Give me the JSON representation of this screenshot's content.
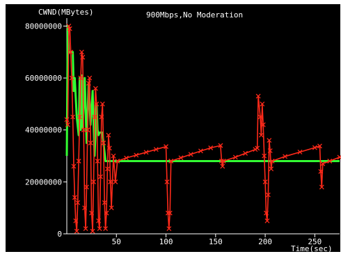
{
  "chart_data": {
    "type": "line",
    "title": "900Mbps,No Moderation",
    "ylabel": "CWND(MBytes)",
    "xlabel": "Time(sec)",
    "xlim": [
      0,
      275
    ],
    "ylim": [
      0,
      82000000
    ],
    "x_ticks": [
      50,
      100,
      150,
      200,
      250
    ],
    "y_ticks": [
      0,
      20000000,
      40000000,
      60000000,
      80000000
    ],
    "x_tick_labels": [
      "50",
      "100",
      "150",
      "200",
      "250"
    ],
    "y_tick_labels": [
      "0",
      "20000000",
      "40000000",
      "60000000",
      "80000000"
    ],
    "grid": false,
    "legend": "none",
    "background": "#000000",
    "series": [
      {
        "color": "#ff2a1a",
        "marker": "x",
        "points": [
          [
            0,
            44000000
          ],
          [
            1,
            42000000
          ],
          [
            2,
            80000000
          ],
          [
            3,
            79000000
          ],
          [
            4,
            70000000
          ],
          [
            5,
            60000000
          ],
          [
            6,
            45000000
          ],
          [
            7,
            26000000
          ],
          [
            8,
            14000000
          ],
          [
            9,
            5000000
          ],
          [
            10,
            1000000
          ],
          [
            11,
            12000000
          ],
          [
            12,
            28000000
          ],
          [
            13,
            45000000
          ],
          [
            14,
            60000000
          ],
          [
            15,
            70000000
          ],
          [
            16,
            68000000
          ],
          [
            17,
            40000000
          ],
          [
            18,
            10000000
          ],
          [
            19,
            2000000
          ],
          [
            20,
            18000000
          ],
          [
            21,
            40000000
          ],
          [
            22,
            58000000
          ],
          [
            23,
            60000000
          ],
          [
            24,
            35000000
          ],
          [
            25,
            8000000
          ],
          [
            26,
            1000000
          ],
          [
            27,
            20000000
          ],
          [
            28,
            45000000
          ],
          [
            29,
            56000000
          ],
          [
            30,
            50000000
          ],
          [
            31,
            28000000
          ],
          [
            32,
            5000000
          ],
          [
            33,
            2000000
          ],
          [
            34,
            22000000
          ],
          [
            35,
            45000000
          ],
          [
            36,
            50000000
          ],
          [
            37,
            35000000
          ],
          [
            38,
            12000000
          ],
          [
            39,
            2000000
          ],
          [
            40,
            8000000
          ],
          [
            41,
            25000000
          ],
          [
            42,
            38000000
          ],
          [
            43,
            33000000
          ],
          [
            44,
            20000000
          ],
          [
            45,
            10000000
          ],
          [
            47,
            30000000
          ],
          [
            49,
            20000000
          ],
          [
            51,
            28000000
          ],
          [
            60,
            29200000
          ],
          [
            70,
            30300000
          ],
          [
            80,
            31400000
          ],
          [
            90,
            32500000
          ],
          [
            100,
            33600000
          ],
          [
            101,
            20000000
          ],
          [
            102,
            8000000
          ],
          [
            103,
            2000000
          ],
          [
            104,
            8000000
          ],
          [
            105,
            28000000
          ],
          [
            115,
            29300000
          ],
          [
            125,
            30600000
          ],
          [
            135,
            31900000
          ],
          [
            145,
            33100000
          ],
          [
            155,
            34000000
          ],
          [
            156,
            28000000
          ],
          [
            157,
            26000000
          ],
          [
            158,
            28000000
          ],
          [
            170,
            29500000
          ],
          [
            180,
            31000000
          ],
          [
            190,
            32500000
          ],
          [
            192,
            33000000
          ],
          [
            193,
            53000000
          ],
          [
            195,
            45000000
          ],
          [
            196,
            38000000
          ],
          [
            197,
            50000000
          ],
          [
            198,
            42000000
          ],
          [
            199,
            30000000
          ],
          [
            200,
            20000000
          ],
          [
            201,
            8000000
          ],
          [
            202,
            5000000
          ],
          [
            203,
            15000000
          ],
          [
            204,
            36000000
          ],
          [
            205,
            32000000
          ],
          [
            206,
            25000000
          ],
          [
            207,
            28000000
          ],
          [
            220,
            29800000
          ],
          [
            235,
            31500000
          ],
          [
            250,
            33200000
          ],
          [
            255,
            33800000
          ],
          [
            256,
            24000000
          ],
          [
            257,
            18000000
          ],
          [
            258,
            27000000
          ],
          [
            265,
            28000000
          ],
          [
            275,
            29500000
          ]
        ]
      },
      {
        "color": "#33ff33",
        "marker": "none",
        "points": [
          [
            0,
            30000000
          ],
          [
            1,
            80000000
          ],
          [
            2,
            70000000
          ],
          [
            6,
            70000000
          ],
          [
            7,
            55000000
          ],
          [
            8,
            60000000
          ],
          [
            10,
            45000000
          ],
          [
            12,
            38000000
          ],
          [
            13,
            60000000
          ],
          [
            14,
            40000000
          ],
          [
            15,
            61000000
          ],
          [
            16,
            41000000
          ],
          [
            18,
            60000000
          ],
          [
            20,
            35000000
          ],
          [
            22,
            58000000
          ],
          [
            24,
            42000000
          ],
          [
            26,
            55000000
          ],
          [
            28,
            30000000
          ],
          [
            30,
            50000000
          ],
          [
            31,
            40000000
          ],
          [
            32,
            38000000
          ],
          [
            33,
            39000000
          ],
          [
            36,
            39000000
          ],
          [
            37,
            35000000
          ],
          [
            39,
            28000000
          ],
          [
            45,
            28000000
          ],
          [
            60,
            28000000
          ],
          [
            100,
            28000000
          ],
          [
            150,
            28000000
          ],
          [
            200,
            28000000
          ],
          [
            250,
            28000000
          ],
          [
            275,
            28000000
          ]
        ]
      }
    ]
  }
}
